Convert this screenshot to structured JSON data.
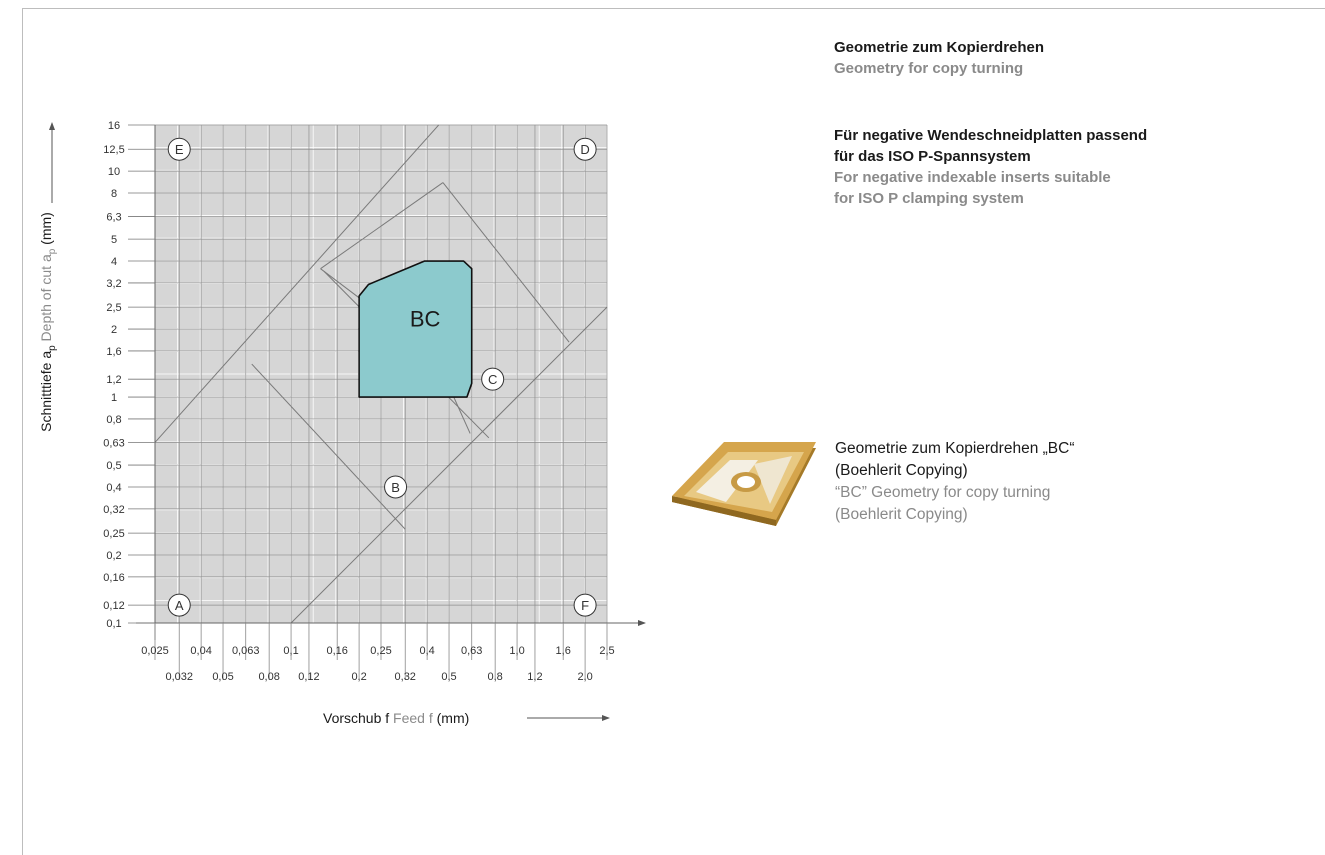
{
  "header": {
    "title_de": "Geometrie zum Kopierdrehen",
    "title_en": "Geometry for copy turning"
  },
  "description": {
    "de_line1": "Für negative Wendeschneidplatten passend",
    "de_line2": "für das ISO P-Spannsystem",
    "en_line1": "For negative indexable inserts suitable",
    "en_line2": "for ISO P clamping system"
  },
  "insert_caption": {
    "de_line1": "Geometrie zum Kopierdrehen „BC“",
    "de_line2": "(Boehlerit Copying)",
    "en_line1": "“BC” Geometry for copy turning",
    "en_line2": "(Boehlerit Copying)"
  },
  "icons": {
    "insert": "indexable-insert-image"
  },
  "colors": {
    "region_fill": "#8ccacd",
    "grid_fill": "#d6d6d6",
    "text_grey": "#8a8a8a"
  },
  "chart_data": {
    "type": "area",
    "xscale": "log",
    "yscale": "log",
    "xlim": [
      0.025,
      2.5
    ],
    "ylim": [
      0.1,
      16
    ],
    "grid": true,
    "xlabel_de": "Vorschub f",
    "xlabel_en": "Feed f",
    "xlabel_unit": "(mm)",
    "ylabel_de": "Schnitttiefe a",
    "ylabel_de_sub": "p",
    "ylabel_en": "Depth of cut a",
    "ylabel_en_sub": "p",
    "ylabel_unit": "(mm)",
    "x_ticks_upper": [
      "0,025",
      "0,04",
      "0,063",
      "0,1",
      "0,16",
      "0,25",
      "0,4",
      "0,63",
      "1,0",
      "1,6",
      "2,5"
    ],
    "x_ticks_upper_values": [
      0.025,
      0.04,
      0.063,
      0.1,
      0.16,
      0.25,
      0.4,
      0.63,
      1.0,
      1.6,
      2.5
    ],
    "x_ticks_lower": [
      "0,032",
      "0,05",
      "0,08",
      "0,12",
      "0,2",
      "0,32",
      "0,5",
      "0,8",
      "1,2",
      "2,0"
    ],
    "x_ticks_lower_values": [
      0.032,
      0.05,
      0.08,
      0.12,
      0.2,
      0.32,
      0.5,
      0.8,
      1.2,
      2.0
    ],
    "y_ticks": [
      "0,1",
      "0,12",
      "0,16",
      "0,2",
      "0,25",
      "0,32",
      "0,4",
      "0,5",
      "0,63",
      "0,8",
      "1",
      "1,2",
      "1,6",
      "2",
      "2,5",
      "3,2",
      "4",
      "5",
      "6,3",
      "8",
      "10",
      "12,5",
      "16"
    ],
    "y_tick_values": [
      0.1,
      0.12,
      0.16,
      0.2,
      0.25,
      0.32,
      0.4,
      0.5,
      0.63,
      0.8,
      1,
      1.2,
      1.6,
      2,
      2.5,
      3.2,
      4,
      5,
      6.3,
      8,
      10,
      12.5,
      16
    ],
    "corner_markers": [
      {
        "label": "E",
        "f": 0.032,
        "ap": 12.5
      },
      {
        "label": "D",
        "f": 2.0,
        "ap": 12.5
      },
      {
        "label": "A",
        "f": 0.032,
        "ap": 0.12
      },
      {
        "label": "F",
        "f": 2.0,
        "ap": 0.12
      }
    ],
    "zone_markers": [
      {
        "label": "C",
        "f": 0.78,
        "ap": 1.2
      },
      {
        "label": "B",
        "f": 0.29,
        "ap": 0.4
      }
    ],
    "diagonal_lines": [
      [
        [
          0.025,
          0.63
        ],
        [
          0.45,
          16
        ]
      ],
      [
        [
          0.1,
          0.1
        ],
        [
          2.5,
          2.5
        ]
      ],
      [
        [
          0.067,
          1.4
        ],
        [
          0.32,
          0.26
        ]
      ],
      [
        [
          0.14,
          3.6
        ],
        [
          0.75,
          0.66
        ]
      ],
      [
        [
          0.135,
          3.7
        ],
        [
          0.47,
          8.9
        ]
      ],
      [
        [
          0.47,
          8.9
        ],
        [
          1.7,
          1.75
        ]
      ],
      [
        [
          0.135,
          3.7
        ],
        [
          0.2,
          2.75
        ]
      ],
      [
        [
          0.52,
          1.02
        ],
        [
          0.62,
          0.69
        ]
      ]
    ],
    "region": {
      "label": "BC",
      "polygon": [
        [
          0.2,
          1.0
        ],
        [
          0.2,
          2.8
        ],
        [
          0.22,
          3.15
        ],
        [
          0.39,
          4.0
        ],
        [
          0.58,
          4.0
        ],
        [
          0.63,
          3.7
        ],
        [
          0.63,
          1.15
        ],
        [
          0.6,
          1.0
        ]
      ]
    }
  }
}
